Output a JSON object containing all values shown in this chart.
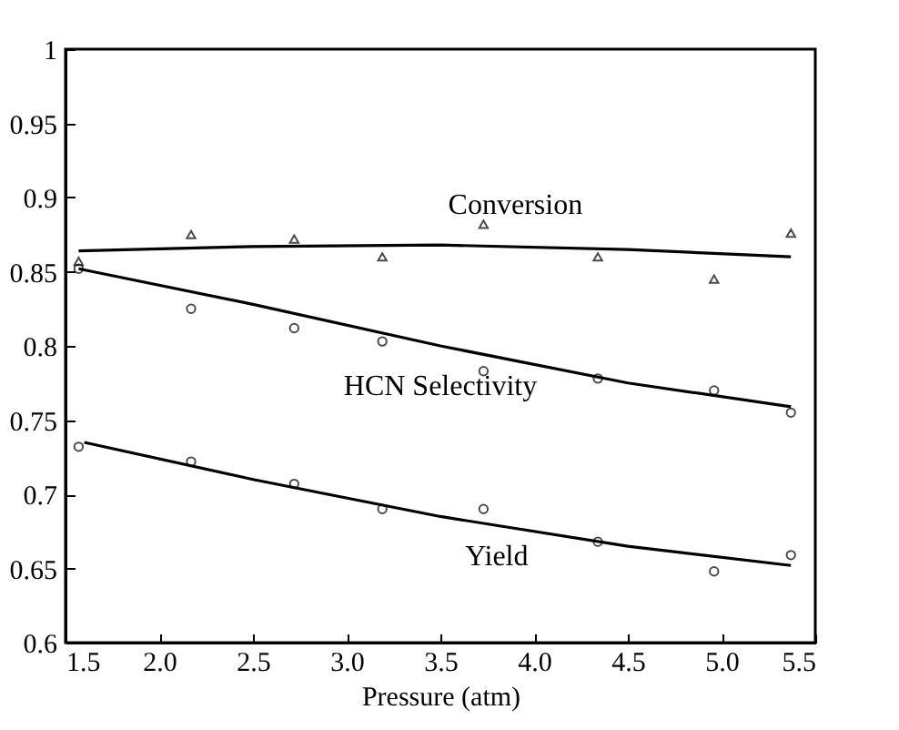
{
  "chart_data": {
    "type": "scatter",
    "xlabel": "Pressure (atm)",
    "xlim": [
      1.5,
      5.5
    ],
    "xticks": [
      {
        "value": 1.5,
        "label": "1.5"
      },
      {
        "value": 2,
        "label": "2.0"
      },
      {
        "value": 2.5,
        "label": "2.5"
      },
      {
        "value": 3,
        "label": "3.0"
      },
      {
        "value": 3.5,
        "label": "3.5"
      },
      {
        "value": 4,
        "label": "4.0"
      },
      {
        "value": 4.5,
        "label": "4.5"
      },
      {
        "value": 5,
        "label": "5.0"
      },
      {
        "value": 5.5,
        "label": "5.5"
      }
    ],
    "ylim": [
      0.6,
      1
    ],
    "yticks": [
      0.6,
      0.65,
      0.7,
      0.75,
      0.8,
      0.85,
      0.9,
      0.95,
      1
    ],
    "grid": false,
    "x": [
      1.57,
      2.17,
      2.72,
      3.19,
      3.73,
      4.34,
      4.96,
      5.37
    ],
    "series": [
      {
        "color": "#000000",
        "marker": "triangle",
        "values": [
          0.857,
          0.875,
          0.872,
          0.86,
          0.882,
          0.86,
          0.845,
          0.876
        ]
      },
      {
        "color": "#000000",
        "marker": "circle",
        "values": [
          0.852,
          0.825,
          0.812,
          0.803,
          0.783,
          0.778,
          0.77,
          0.755
        ]
      },
      {
        "color": "#000000",
        "marker": "circle",
        "values": [
          0.732,
          0.722,
          0.707,
          0.69,
          0.69,
          0.668,
          0.648,
          0.659
        ]
      },
      {
        "type": "line",
        "name": "Conversion",
        "color": "#000000",
        "x": [
          1.57,
          2.5,
          3.5,
          4.5,
          5.37
        ],
        "values": [
          0.864,
          0.867,
          0.868,
          0.865,
          0.86
        ]
      },
      {
        "type": "line",
        "name": "HCN Selectivity",
        "color": "#000000",
        "x": [
          1.57,
          2.5,
          3.5,
          4.5,
          5.37
        ],
        "values": [
          0.852,
          0.828,
          0.8,
          0.775,
          0.759
        ]
      },
      {
        "type": "line",
        "name": "Yield",
        "color": "#000000",
        "x": [
          1.6,
          2.5,
          3.5,
          4.5,
          5.37
        ],
        "values": [
          0.735,
          0.71,
          0.685,
          0.665,
          0.652
        ]
      }
    ]
  }
}
